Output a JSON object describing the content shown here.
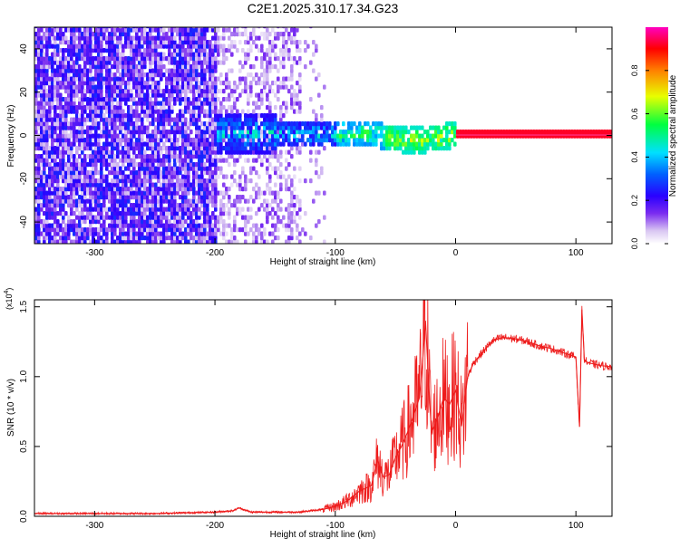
{
  "figure_title": "C2E1.2025.310.17.34.G23",
  "chart_data": [
    {
      "type": "heatmap",
      "title": "C2E1.2025.310.17.34.G23",
      "xlabel": "Height of straight line (km)",
      "ylabel": "Frequency (Hz)",
      "xlim": [
        -350,
        130
      ],
      "ylim": [
        -50,
        50
      ],
      "xticks": [
        -300,
        -200,
        -100,
        0,
        100
      ],
      "xtick_labels": [
        "-300",
        "-200",
        "-100",
        "0",
        "100"
      ],
      "yticks": [
        -40,
        -20,
        0,
        20,
        40
      ],
      "ytick_labels": [
        "-40",
        "-20",
        "0",
        "20",
        "40"
      ],
      "colorbar": {
        "label": "Normalized spectral amplitude",
        "range": [
          0.0,
          1.0
        ],
        "ticks": [
          0.0,
          0.2,
          0.4,
          0.6,
          0.8
        ],
        "tick_labels": [
          "0.0",
          "0.2",
          "0.4",
          "0.6",
          "0.8"
        ],
        "colors": [
          "#ffffff",
          "#d9c6f2",
          "#7a2cf0",
          "#2a00ff",
          "#0044ff",
          "#00d8ff",
          "#00ff40",
          "#e8ff00",
          "#ff8000",
          "#ff0000",
          "#ff00c0"
        ]
      },
      "description_regions": [
        {
          "x_range": [
            -350,
            -200
          ],
          "freq_range": [
            -50,
            50
          ],
          "amplitude": 0.25
        },
        {
          "x_range": [
            -200,
            -130
          ],
          "freq_range": [
            -50,
            50
          ],
          "amplitude": 0.1
        },
        {
          "x_range": [
            -200,
            0
          ],
          "freq_range": [
            -8,
            8
          ],
          "amplitude": 0.45
        },
        {
          "x_range": [
            0,
            130
          ],
          "freq_range": [
            -1,
            1
          ],
          "amplitude": 0.95
        }
      ]
    },
    {
      "type": "line",
      "xlabel": "Height of straight line (km)",
      "ylabel": "SNR (10 * v/v)",
      "y_scale_label": "(x10",
      "y_scale_exponent": "4",
      "xlim": [
        -350,
        130
      ],
      "ylim": [
        0,
        1.55
      ],
      "xticks": [
        -300,
        -200,
        -100,
        0,
        100
      ],
      "xtick_labels": [
        "-300",
        "-200",
        "-100",
        "0",
        "100"
      ],
      "yticks": [
        0.0,
        0.5,
        1.0,
        1.5
      ],
      "ytick_labels": [
        "0.0",
        "0.5",
        "1.0",
        "1.5"
      ],
      "series": [
        {
          "name": "SNR",
          "color": "#ee1c1c",
          "x": [
            -350,
            -300,
            -250,
            -200,
            -185,
            -180,
            -170,
            -150,
            -130,
            -110,
            -100,
            -90,
            -80,
            -70,
            -65,
            -60,
            -55,
            -50,
            -45,
            -40,
            -35,
            -30,
            -27,
            -25,
            -22,
            -20,
            -15,
            -10,
            -5,
            0,
            5,
            10,
            15,
            20,
            25,
            30,
            35,
            40,
            50,
            60,
            70,
            80,
            90,
            100,
            103,
            105,
            107,
            110,
            120,
            130
          ],
          "values": [
            0.02,
            0.02,
            0.02,
            0.03,
            0.04,
            0.06,
            0.03,
            0.03,
            0.03,
            0.05,
            0.07,
            0.11,
            0.18,
            0.22,
            0.4,
            0.28,
            0.3,
            0.42,
            0.5,
            0.6,
            0.72,
            0.85,
            1.15,
            1.4,
            0.9,
            0.6,
            0.7,
            0.85,
            0.8,
            0.9,
            0.65,
            1.0,
            1.1,
            1.15,
            1.2,
            1.25,
            1.27,
            1.28,
            1.27,
            1.25,
            1.22,
            1.2,
            1.17,
            1.14,
            0.64,
            1.48,
            1.12,
            1.1,
            1.08,
            1.07
          ]
        }
      ]
    }
  ]
}
